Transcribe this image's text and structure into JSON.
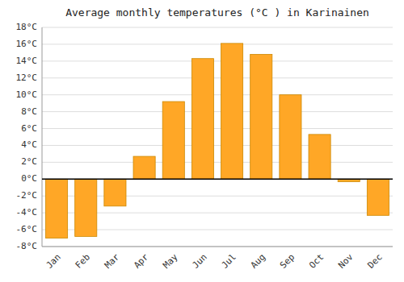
{
  "chart_data": {
    "type": "bar",
    "title": "Average monthly temperatures (°C ) in Karinainen",
    "categories": [
      "Jan",
      "Feb",
      "Mar",
      "Apr",
      "May",
      "Jun",
      "Jul",
      "Aug",
      "Sep",
      "Oct",
      "Nov",
      "Dec"
    ],
    "values": [
      -7.0,
      -6.8,
      -3.2,
      2.7,
      9.2,
      14.3,
      16.1,
      14.8,
      10.0,
      5.3,
      -0.3,
      -4.3
    ],
    "color": "#FFA726",
    "ylim": [
      -8,
      18
    ],
    "yticks": [
      {
        "value": -8,
        "label": "-8°C"
      },
      {
        "value": -6,
        "label": "-6°C"
      },
      {
        "value": -4,
        "label": "-4°C"
      },
      {
        "value": -2,
        "label": "-2°C"
      },
      {
        "value": 0,
        "label": "0°C"
      },
      {
        "value": 2,
        "label": "2°C"
      },
      {
        "value": 4,
        "label": "4°C"
      },
      {
        "value": 6,
        "label": "6°C"
      },
      {
        "value": 8,
        "label": "8°C"
      },
      {
        "value": 10,
        "label": "10°C"
      },
      {
        "value": 12,
        "label": "12°C"
      },
      {
        "value": 14,
        "label": "14°C"
      },
      {
        "value": 16,
        "label": "16°C"
      },
      {
        "value": 18,
        "label": "18°C"
      }
    ],
    "grid": true
  }
}
